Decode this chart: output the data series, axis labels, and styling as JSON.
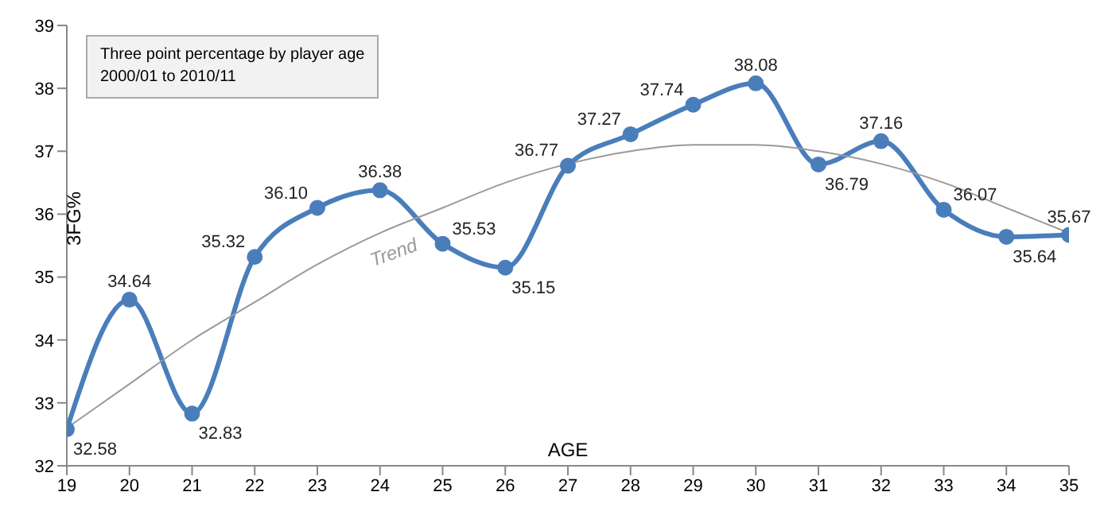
{
  "chart_data": {
    "type": "line",
    "title": "Three point percentage by player age",
    "subtitle": "2000/01 to 2010/11",
    "xlabel": "AGE",
    "ylabel": "3FG%",
    "x": [
      19,
      20,
      21,
      22,
      23,
      24,
      25,
      26,
      27,
      28,
      29,
      30,
      31,
      32,
      33,
      34,
      35
    ],
    "series": [
      {
        "color": "#4a7ebb",
        "marker": "circle",
        "values": [
          32.58,
          34.64,
          32.83,
          35.32,
          36.1,
          36.38,
          35.53,
          35.15,
          36.77,
          37.27,
          37.74,
          38.08,
          36.79,
          37.16,
          36.07,
          35.64,
          35.67
        ],
        "value_labels": [
          "32.58",
          "34.64",
          "32.83",
          "35.32",
          "36.10",
          "36.38",
          "35.53",
          "35.15",
          "36.77",
          "37.27",
          "37.74",
          "38.08",
          "36.79",
          "37.16",
          "36.07",
          "35.64",
          "35.67"
        ]
      },
      {
        "name": "Trend",
        "color": "#9a9a9a",
        "marker": "none",
        "values": [
          32.6,
          33.3,
          34.0,
          34.6,
          35.2,
          35.7,
          36.1,
          36.5,
          36.8,
          37.0,
          37.1,
          37.1,
          37.0,
          36.8,
          36.5,
          36.1,
          35.7
        ]
      }
    ],
    "xlim": [
      19,
      35
    ],
    "xticks": [
      19,
      20,
      21,
      22,
      23,
      24,
      25,
      26,
      27,
      28,
      29,
      30,
      31,
      32,
      33,
      34,
      35
    ],
    "ylim": [
      32,
      39
    ],
    "yticks": [
      32,
      33,
      34,
      35,
      36,
      37,
      38,
      39
    ],
    "grid": false,
    "legend": false,
    "line_style": "solid"
  }
}
